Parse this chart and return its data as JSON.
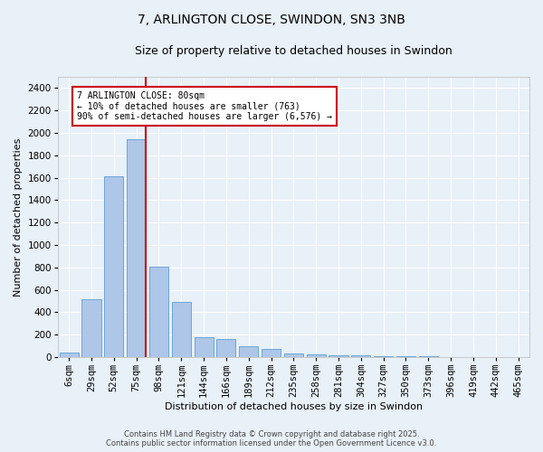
{
  "title1": "7, ARLINGTON CLOSE, SWINDON, SN3 3NB",
  "title2": "Size of property relative to detached houses in Swindon",
  "xlabel": "Distribution of detached houses by size in Swindon",
  "ylabel": "Number of detached properties",
  "categories": [
    "6sqm",
    "29sqm",
    "52sqm",
    "75sqm",
    "98sqm",
    "121sqm",
    "144sqm",
    "166sqm",
    "189sqm",
    "212sqm",
    "235sqm",
    "258sqm",
    "281sqm",
    "304sqm",
    "327sqm",
    "350sqm",
    "373sqm",
    "396sqm",
    "419sqm",
    "442sqm",
    "465sqm"
  ],
  "values": [
    40,
    520,
    1610,
    1940,
    810,
    490,
    175,
    165,
    95,
    70,
    35,
    25,
    20,
    15,
    10,
    8,
    5,
    3,
    2,
    1,
    3
  ],
  "bar_color": "#aec6e8",
  "bar_edge_color": "#5a9fd4",
  "vline_x_index": 3,
  "vline_color": "#cc0000",
  "annotation_text": "7 ARLINGTON CLOSE: 80sqm\n← 10% of detached houses are smaller (763)\n90% of semi-detached houses are larger (6,576) →",
  "annotation_box_color": "#cc0000",
  "annotation_fill": "#ffffff",
  "background_color": "#e8f0f8",
  "grid_color": "#ffffff",
  "ylim": [
    0,
    2500
  ],
  "yticks": [
    0,
    200,
    400,
    600,
    800,
    1000,
    1200,
    1400,
    1600,
    1800,
    2000,
    2200,
    2400
  ],
  "footer": "Contains HM Land Registry data © Crown copyright and database right 2025.\nContains public sector information licensed under the Open Government Licence v3.0.",
  "title_fontsize": 10,
  "subtitle_fontsize": 9,
  "axis_fontsize": 8,
  "tick_fontsize": 7.5,
  "footer_fontsize": 6
}
